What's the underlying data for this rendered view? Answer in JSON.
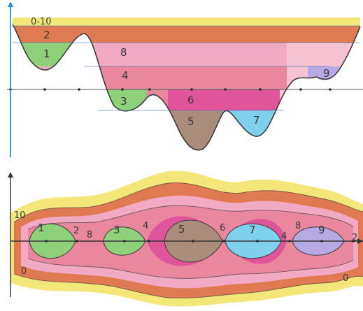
{
  "top": {
    "range_label": "0-10",
    "region_labels": {
      "r1": "1",
      "r2": "2",
      "r3": "3",
      "r4": "4",
      "r5": "5",
      "r6": "6",
      "r7": "7",
      "r8": "8",
      "r9": "9"
    }
  },
  "bottom": {
    "axis_value_10": "10",
    "axis_value_0_left": "0",
    "axis_value_0_right": "0",
    "region_labels": {
      "r1": "1",
      "r2_left": "2",
      "r8_left": "8",
      "r3": "3",
      "r4_left": "4",
      "r5": "5",
      "r6": "6",
      "r7": "7",
      "r4_right": "4",
      "r8_right": "8",
      "r9": "9",
      "r2_right": "2"
    }
  },
  "colors": {
    "yellow": "#f4e77a",
    "orange_red": "#e07a52",
    "pink": "#f2a9c4",
    "pink_light": "#f7c3d3",
    "rose": "#e8879e",
    "magenta": "#e0559a",
    "green": "#8fd07a",
    "brown": "#a98c7c",
    "cyan": "#7fd0ec",
    "lavender": "#b7a9e4",
    "axis_blue": "#2f8fd8",
    "line_dark": "#3c3c3c"
  }
}
